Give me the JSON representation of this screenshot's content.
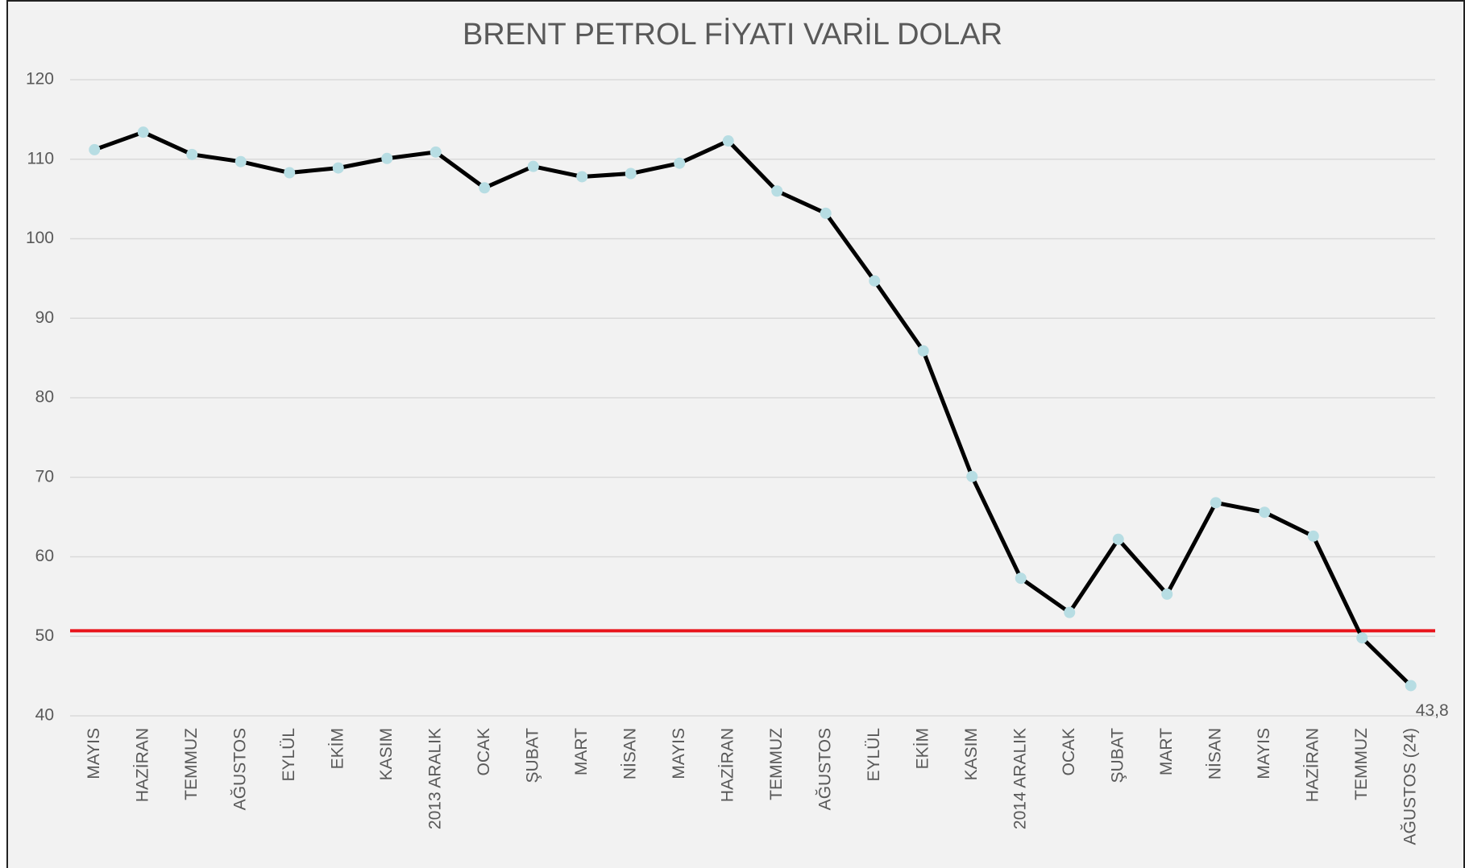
{
  "chart_data": {
    "type": "line",
    "title": "BRENT PETROL FİYATI VARİL DOLAR",
    "categories": [
      "MAYIS",
      "HAZİRAN",
      "TEMMUZ",
      "AĞUSTOS",
      "EYLÜL",
      "EKİM",
      "KASIM",
      "2013 ARALIK",
      "OCAK",
      "ŞUBAT",
      "MART",
      "NİSAN",
      "MAYIS",
      "HAZİRAN",
      "TEMMUZ",
      "AĞUSTOS",
      "EYLÜL",
      "EKİM",
      "KASIM",
      "2014 ARALIK",
      "OCAK",
      "ŞUBAT",
      "MART",
      "NİSAN",
      "MAYIS",
      "HAZİRAN",
      "TEMMUZ",
      "AĞUSTOS (24)"
    ],
    "values": [
      111.2,
      113.4,
      110.6,
      109.7,
      108.3,
      108.9,
      110.1,
      110.9,
      106.4,
      109.1,
      107.8,
      108.2,
      109.5,
      112.3,
      106.0,
      103.2,
      94.7,
      85.9,
      70.1,
      57.3,
      53.0,
      62.2,
      55.3,
      66.8,
      65.6,
      62.6,
      49.8,
      43.8
    ],
    "value_labels": [
      null,
      null,
      null,
      null,
      null,
      null,
      null,
      null,
      null,
      null,
      null,
      null,
      null,
      null,
      null,
      null,
      null,
      null,
      null,
      null,
      null,
      null,
      null,
      null,
      null,
      null,
      null,
      "43,8"
    ],
    "color": "#000000",
    "marker_color": "#b7dde3",
    "reference_line": {
      "value": 50.7,
      "color": "#e8141b"
    },
    "ylim": [
      40,
      120
    ],
    "yticks": [
      40,
      50,
      60,
      70,
      80,
      90,
      100,
      110,
      120
    ],
    "grid": true
  }
}
